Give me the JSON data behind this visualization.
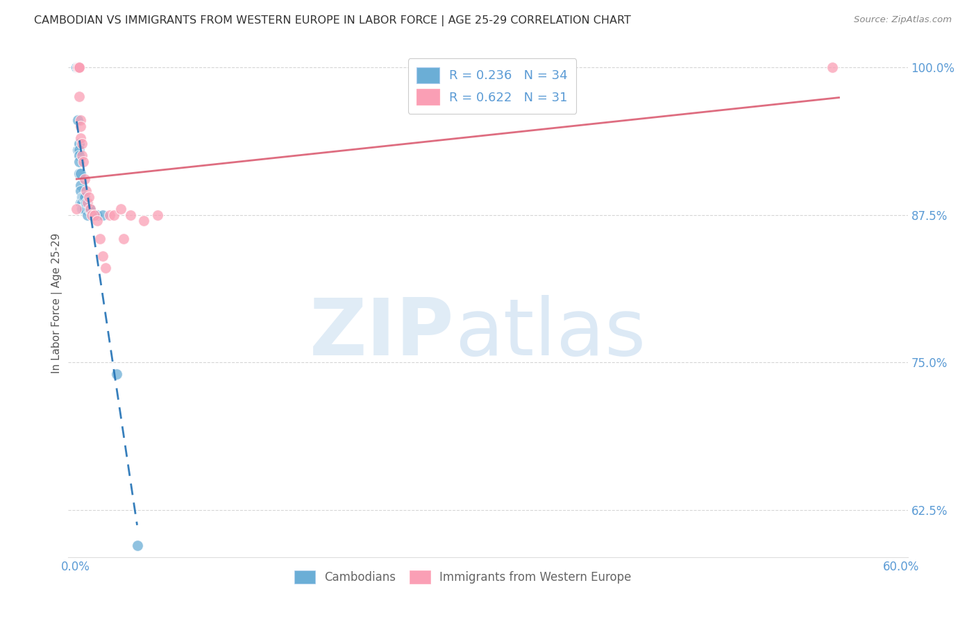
{
  "title": "CAMBODIAN VS IMMIGRANTS FROM WESTERN EUROPE IN LABOR FORCE | AGE 25-29 CORRELATION CHART",
  "source": "Source: ZipAtlas.com",
  "ylabel": "In Labor Force | Age 25-29",
  "xlim": [
    -0.005,
    0.605
  ],
  "ylim": [
    0.585,
    1.015
  ],
  "xticks": [
    0.0,
    0.1,
    0.2,
    0.3,
    0.4,
    0.5,
    0.6
  ],
  "xticklabels": [
    "0.0%",
    "",
    "",
    "",
    "",
    "",
    "60.0%"
  ],
  "yticks_right": [
    1.0,
    0.875,
    0.75,
    0.625
  ],
  "yticklabels_right": [
    "100.0%",
    "87.5%",
    "75.0%",
    "62.5%"
  ],
  "blue_R": 0.236,
  "blue_N": 34,
  "pink_R": 0.622,
  "pink_N": 31,
  "legend_label_blue": "Cambodians",
  "legend_label_pink": "Immigrants from Western Europe",
  "blue_color": "#6baed6",
  "pink_color": "#fa9fb5",
  "blue_line_color": "#2171b5",
  "pink_line_color": "#d9536a",
  "title_color": "#333333",
  "axis_color": "#5b9bd5",
  "grid_color": "#cccccc",
  "blue_x": [
    0.001,
    0.001,
    0.001,
    0.002,
    0.002,
    0.002,
    0.002,
    0.002,
    0.002,
    0.003,
    0.003,
    0.003,
    0.003,
    0.003,
    0.004,
    0.004,
    0.004,
    0.004,
    0.005,
    0.005,
    0.005,
    0.006,
    0.006,
    0.007,
    0.007,
    0.008,
    0.009,
    0.01,
    0.011,
    0.013,
    0.016,
    0.02,
    0.03,
    0.045
  ],
  "blue_y": [
    1.0,
    1.0,
    1.0,
    1.0,
    1.0,
    1.0,
    1.0,
    0.955,
    0.93,
    0.935,
    0.93,
    0.925,
    0.92,
    0.91,
    0.91,
    0.9,
    0.895,
    0.885,
    0.89,
    0.885,
    0.88,
    0.89,
    0.88,
    0.89,
    0.88,
    0.885,
    0.875,
    0.88,
    0.88,
    0.875,
    0.875,
    0.875,
    0.74,
    0.595
  ],
  "pink_x": [
    0.001,
    0.002,
    0.003,
    0.003,
    0.003,
    0.003,
    0.004,
    0.004,
    0.004,
    0.005,
    0.005,
    0.006,
    0.007,
    0.008,
    0.009,
    0.01,
    0.011,
    0.012,
    0.014,
    0.016,
    0.018,
    0.02,
    0.022,
    0.025,
    0.028,
    0.033,
    0.035,
    0.04,
    0.05,
    0.06,
    0.55
  ],
  "pink_y": [
    0.88,
    1.0,
    1.0,
    1.0,
    1.0,
    0.975,
    0.955,
    0.95,
    0.94,
    0.935,
    0.925,
    0.92,
    0.905,
    0.895,
    0.885,
    0.89,
    0.88,
    0.875,
    0.875,
    0.87,
    0.855,
    0.84,
    0.83,
    0.875,
    0.875,
    0.88,
    0.855,
    0.875,
    0.87,
    0.875,
    1.0
  ]
}
